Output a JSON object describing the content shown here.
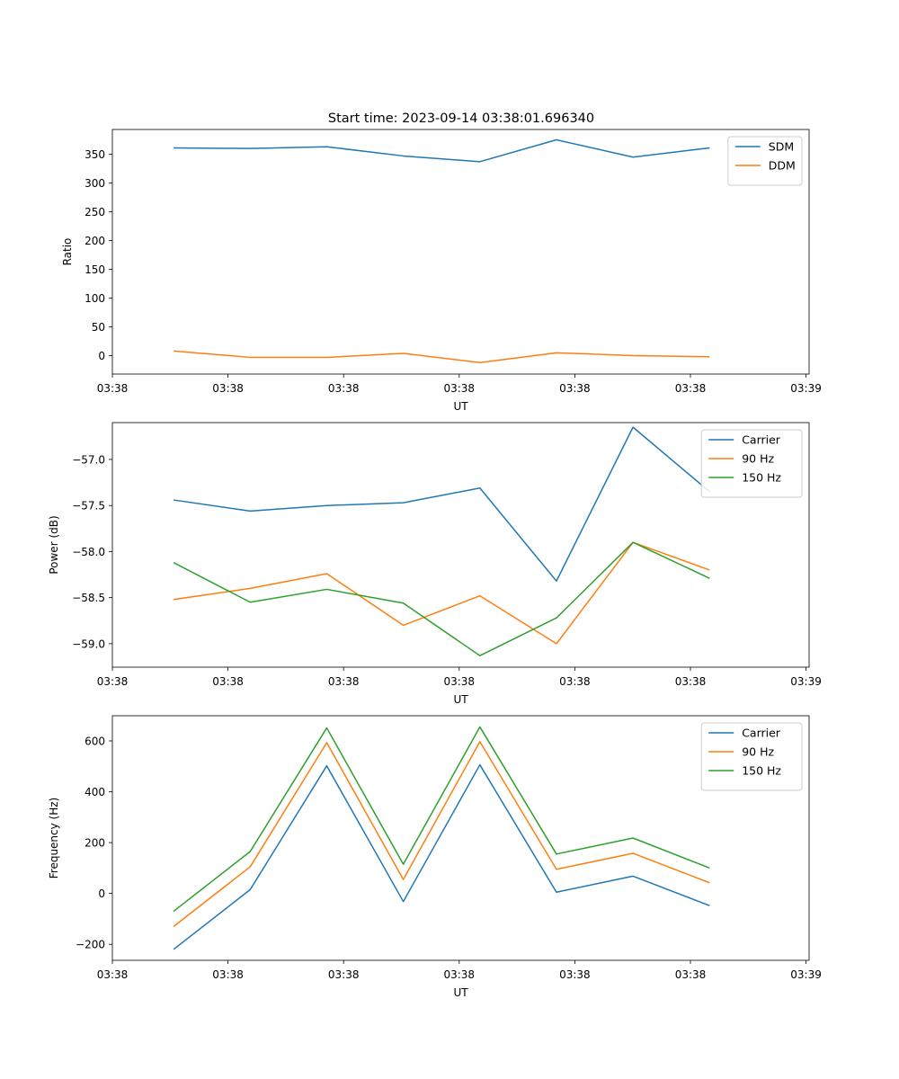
{
  "figure_title": "Start time: 2023-09-14 03:38:01.696340",
  "chart_data": [
    {
      "type": "line",
      "title": "Start time: 2023-09-14 03:38:01.696340",
      "xlabel": "UT",
      "ylabel": "Ratio",
      "x": [
        1,
        2,
        3,
        4,
        5,
        6,
        7,
        8
      ],
      "xlim": [
        0.2,
        9.3
      ],
      "x_ticks": [
        0.2,
        1.71,
        3.22,
        4.73,
        6.24,
        7.75,
        9.26
      ],
      "x_tick_labels": [
        "03:38",
        "03:38",
        "03:38",
        "03:38",
        "03:38",
        "03:38",
        "03:39"
      ],
      "ylim": [
        -32,
        393
      ],
      "y_ticks": [
        0,
        50,
        100,
        150,
        200,
        250,
        300,
        350
      ],
      "y_tick_labels": [
        "0",
        "50",
        "100",
        "150",
        "200",
        "250",
        "300",
        "350"
      ],
      "legend": "top-right",
      "series": [
        {
          "name": "SDM",
          "color": "#1f77b4",
          "values": [
            361,
            360,
            363,
            347,
            337,
            375,
            345,
            361
          ]
        },
        {
          "name": "DDM",
          "color": "#ff7f0e",
          "values": [
            8,
            -3,
            -3,
            4,
            -12,
            5,
            0,
            -2
          ]
        }
      ]
    },
    {
      "type": "line",
      "title": "",
      "xlabel": "UT",
      "ylabel": "Power (dB)",
      "x": [
        1,
        2,
        3,
        4,
        5,
        6,
        7,
        8
      ],
      "xlim": [
        0.2,
        9.3
      ],
      "x_ticks": [
        0.2,
        1.71,
        3.22,
        4.73,
        6.24,
        7.75,
        9.26
      ],
      "x_tick_labels": [
        "03:38",
        "03:38",
        "03:38",
        "03:38",
        "03:38",
        "03:38",
        "03:39"
      ],
      "ylim": [
        -59.255,
        -56.6
      ],
      "y_ticks": [
        -59.0,
        -58.5,
        -58.0,
        -57.5,
        -57.0
      ],
      "y_tick_labels": [
        "−59.0",
        "−58.5",
        "−58.0",
        "−57.5",
        "−57.0"
      ],
      "legend": "top-right",
      "series": [
        {
          "name": "Carrier",
          "color": "#1f77b4",
          "values": [
            -57.44,
            -57.56,
            -57.5,
            -57.47,
            -57.31,
            -58.32,
            -56.65,
            -57.35
          ]
        },
        {
          "name": "90 Hz",
          "color": "#ff7f0e",
          "values": [
            -58.52,
            -58.4,
            -58.24,
            -58.8,
            -58.48,
            -59.0,
            -57.9,
            -58.2
          ]
        },
        {
          "name": "150 Hz",
          "color": "#2ca02c",
          "values": [
            -58.12,
            -58.55,
            -58.41,
            -58.56,
            -59.13,
            -58.72,
            -57.9,
            -58.29
          ]
        }
      ]
    },
    {
      "type": "line",
      "title": "",
      "xlabel": "UT",
      "ylabel": "Frequency (Hz)",
      "x": [
        1,
        2,
        3,
        4,
        5,
        6,
        7,
        8
      ],
      "xlim": [
        0.2,
        9.3
      ],
      "x_ticks": [
        0.2,
        1.71,
        3.22,
        4.73,
        6.24,
        7.75,
        9.26
      ],
      "x_tick_labels": [
        "03:38",
        "03:38",
        "03:38",
        "03:38",
        "03:38",
        "03:38",
        "03:39"
      ],
      "ylim": [
        -263,
        699
      ],
      "y_ticks": [
        -200,
        0,
        200,
        400,
        600
      ],
      "y_tick_labels": [
        "−200",
        "0",
        "200",
        "400",
        "600"
      ],
      "legend": "top-right",
      "series": [
        {
          "name": "Carrier",
          "color": "#1f77b4",
          "values": [
            -220,
            15,
            502,
            -32,
            506,
            5,
            68,
            -48
          ]
        },
        {
          "name": "90 Hz",
          "color": "#ff7f0e",
          "values": [
            -130,
            105,
            593,
            55,
            597,
            95,
            158,
            42
          ]
        },
        {
          "name": "150 Hz",
          "color": "#2ca02c",
          "values": [
            -70,
            165,
            651,
            115,
            655,
            155,
            218,
            100
          ]
        }
      ]
    }
  ]
}
